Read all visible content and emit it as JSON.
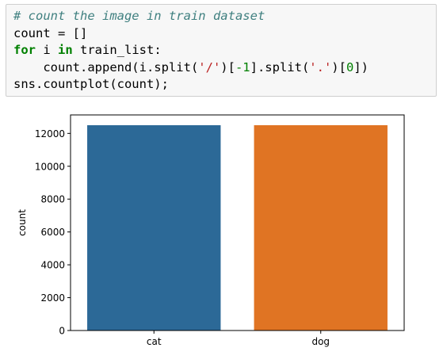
{
  "code_cell": {
    "comment": "# count the image in train dataset",
    "line2": {
      "var": "count",
      "op": " = ",
      "rest": "[]"
    },
    "line3": {
      "kw_for": "for",
      "sp1": " i ",
      "kw_in": "in",
      "rest": " train_list:"
    },
    "line4": {
      "indent": "    ",
      "call": "count.append(i.split(",
      "str1": "'/'",
      "mid1": ")[",
      "num1": "-1",
      "mid2": "].split(",
      "str2": "'.'",
      "mid3": ")[",
      "num2": "0",
      "end": "])"
    },
    "line5": "sns.countplot(count);"
  },
  "chart_data": {
    "type": "bar",
    "categories": [
      "cat",
      "dog"
    ],
    "values": [
      12500,
      12500
    ],
    "colors": [
      "#2c6997",
      "#e07423"
    ],
    "xlabel": "",
    "ylabel": "count",
    "ylim": [
      0,
      13125
    ],
    "yticks": [
      0,
      2000,
      4000,
      6000,
      8000,
      10000,
      12000
    ],
    "ytick_labels": [
      "0",
      "2000",
      "4000",
      "6000",
      "8000",
      "10000",
      "12000"
    ],
    "grid": false
  }
}
